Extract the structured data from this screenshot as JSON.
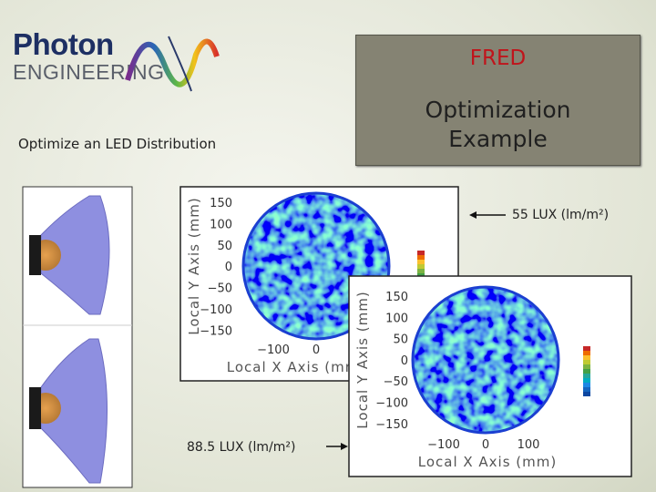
{
  "logo": {
    "name": "Photon",
    "sub": "ENGINEERING"
  },
  "subtitle": "Optimize an LED Distribution",
  "title_box": {
    "product": "FRED",
    "title": "Optimization Example"
  },
  "plots": [
    {
      "y_label": "Local Y Axis (mm)",
      "x_label": "Local X Axis (mm)",
      "y_ticks": [
        "150",
        "100",
        "50",
        "0",
        "−50",
        "−100",
        "−150"
      ],
      "x_ticks": [
        "−100",
        "0"
      ],
      "caption": "55 LUX (lm/m²)"
    },
    {
      "y_label": "Local Y Axis (mm)",
      "x_label": "Local X Axis (mm)",
      "y_ticks": [
        "150",
        "100",
        "50",
        "0",
        "−50",
        "−100",
        "−150"
      ],
      "x_ticks": [
        "−100",
        "0",
        "100"
      ],
      "caption": "88.5 LUX (lm/m²)"
    }
  ]
}
